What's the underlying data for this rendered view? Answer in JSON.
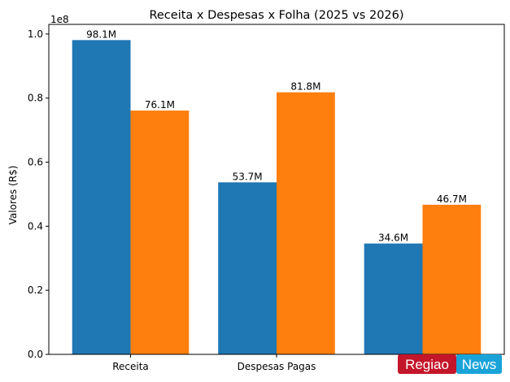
{
  "chart_data": {
    "type": "bar",
    "title": "Receita x Despesas x Folha (2025 vs 2026)",
    "xlabel": "",
    "ylabel": "Valores (R$)",
    "y_offset_label": "1e8",
    "categories": [
      "Receita",
      "Despesas Pagas",
      ""
    ],
    "ylim": [
      0,
      1.03
    ],
    "yticks": [
      0.0,
      0.2,
      0.4,
      0.6,
      0.8,
      1.0
    ],
    "ytick_labels": [
      "0.0",
      "0.2",
      "0.4",
      "0.6",
      "0.8",
      "1.0"
    ],
    "grid": false,
    "legend": "none",
    "series": [
      {
        "color": "#1f77b4",
        "values": [
          0.981,
          0.537,
          0.346
        ],
        "labels": [
          "98.1M",
          "53.7M",
          "34.6M"
        ]
      },
      {
        "color": "#ff7f0e",
        "values": [
          0.761,
          0.818,
          0.467
        ],
        "labels": [
          "76.1M",
          "81.8M",
          "46.7M"
        ]
      }
    ]
  },
  "watermark": {
    "part1": "Regiao",
    "part2": "News",
    "color1": "#c4162a",
    "color2": "#1aa3d9"
  }
}
